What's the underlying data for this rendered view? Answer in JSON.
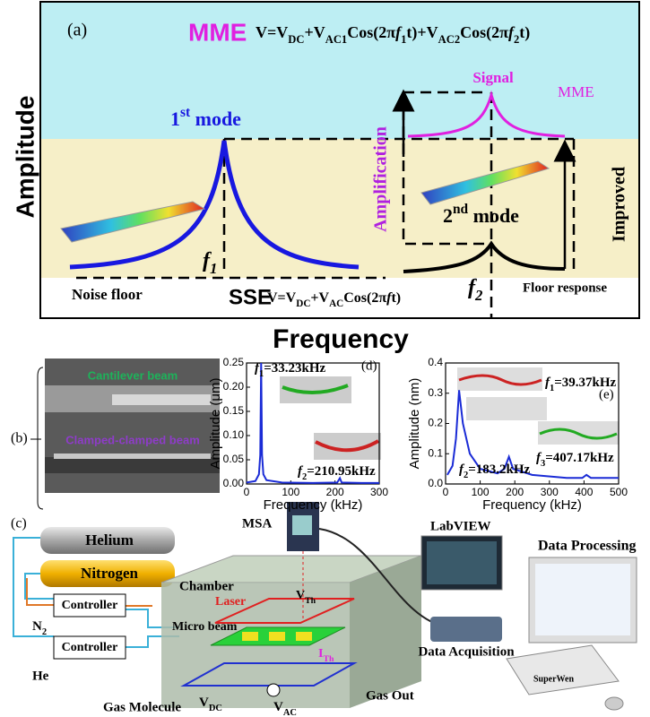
{
  "panel_a": {
    "label": "(a)",
    "mme": "MME",
    "mme_equation": [
      "V=V",
      "DC",
      "+V",
      "AC1",
      "Cos(2π",
      "f",
      "1",
      "t)+V",
      "AC2",
      "Cos(2π",
      "f",
      "2",
      "t)"
    ],
    "y_axis_label": "Amplitude",
    "x_axis_label": "Frequency",
    "first_mode": [
      "1",
      "st",
      " mode"
    ],
    "signal": "Signal",
    "mme_curve_label": "MME",
    "amplification": "Amplification",
    "improved": "Improved",
    "second_mode": [
      "2",
      "nd",
      " mode"
    ],
    "f1": [
      "f",
      "1"
    ],
    "f2": [
      "f",
      "2"
    ],
    "noise_floor": "Noise floor",
    "sse": "SSE",
    "sse_equation": [
      "V=V",
      "DC",
      "+V",
      "AC",
      "Cos(2π",
      "f",
      "t)"
    ],
    "floor_response": "Floor response"
  },
  "panel_b": {
    "label": "(b)",
    "cantilever": "Cantilever beam",
    "clamped": "Clamped-clamped beam"
  },
  "panel_d": {
    "type": "line",
    "label": "(d)",
    "x_label": "Frequency (kHz)",
    "y_label": "Amplitude (μm)",
    "x": [
      0,
      20,
      28,
      31,
      33,
      35,
      38,
      45,
      80,
      150,
      205,
      211,
      215,
      260,
      300
    ],
    "series": [
      {
        "color": "#1a2bd6",
        "values": [
          0.003,
          0.006,
          0.02,
          0.06,
          0.25,
          0.06,
          0.02,
          0.008,
          0.003,
          0.002,
          0.003,
          0.012,
          0.003,
          0.002,
          0.002
        ]
      }
    ],
    "xlim": [
      0,
      300
    ],
    "ylim": [
      0,
      0.25
    ],
    "xticks": [
      0,
      100,
      200,
      300
    ],
    "yticks": [
      {
        "value": 0,
        "label": "0.00"
      },
      0.05,
      {
        "value": 0.1,
        "label": "0.10"
      },
      0.15,
      {
        "value": 0.2,
        "label": "0.20"
      },
      0.25
    ],
    "annotations": [
      [
        "f",
        "1",
        "=33.23kHz"
      ],
      [
        "f",
        "2",
        "=210.95kHz"
      ]
    ]
  },
  "panel_e": {
    "type": "line",
    "label": "(e)",
    "x_label": "Frequency (kHz)",
    "y_label": "Amplitude (nm)",
    "x": [
      5,
      20,
      30,
      39,
      50,
      70,
      100,
      150,
      170,
      183,
      195,
      250,
      350,
      395,
      407,
      420,
      500
    ],
    "series": [
      {
        "color": "#1a2bd6",
        "values": [
          0.03,
          0.06,
          0.15,
          0.31,
          0.2,
          0.1,
          0.05,
          0.035,
          0.05,
          0.09,
          0.05,
          0.03,
          0.02,
          0.02,
          0.03,
          0.02,
          0.02
        ]
      }
    ],
    "xlim": [
      0,
      500
    ],
    "ylim": [
      0,
      0.4
    ],
    "xticks": [
      0,
      100,
      200,
      300,
      400,
      500
    ],
    "yticks": [
      {
        "value": 0,
        "label": "0.0"
      },
      0.1,
      0.2,
      0.3,
      0.4
    ],
    "annotations": [
      [
        "f",
        "1",
        "=39.37kHz"
      ],
      [
        "f",
        "2",
        "=183.2kHz"
      ],
      [
        "f",
        "3",
        "=407.17kHz"
      ]
    ]
  },
  "panel_c": {
    "label": "(c)",
    "helium": "Helium",
    "nitrogen": "Nitrogen",
    "controller_1": "Controller",
    "controller_2": "Controller",
    "n2": [
      "N",
      "2"
    ],
    "he": "He",
    "msa": "MSA",
    "chamber": "Chamber",
    "laser": "Laser",
    "v_th": [
      "V",
      "Th"
    ],
    "micro_beam": "Micro beam",
    "i_th": [
      "I",
      "Th"
    ],
    "v_dc": [
      "V",
      "DC"
    ],
    "v_ac": [
      "V",
      "AC"
    ],
    "gas_molecule": "Gas Molecule",
    "gas_out": "Gas Out",
    "labview": "LabVIEW",
    "data_processing": "Data Processing",
    "data_acquisition": "Data Acquisition",
    "superwen": "SuperWen"
  }
}
